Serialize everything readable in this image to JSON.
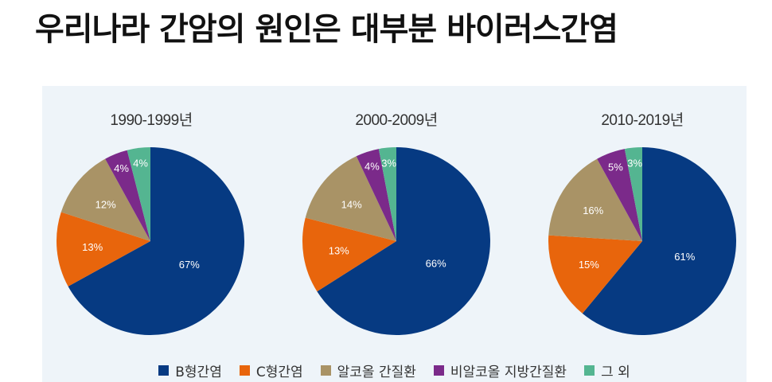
{
  "headline": "우리나라 간암의 원인은 대부분 바이러스간염",
  "colors": {
    "B형간염": "#063a82",
    "C형간염": "#e8650c",
    "알코올 간질환": "#a99366",
    "비알코올 지방간질환": "#7b2a8a",
    "그 외": "#54b591",
    "panel_bg": "#eef4f9"
  },
  "chart_data": [
    {
      "type": "pie",
      "title": "1990-1999년",
      "categories": [
        "B형간염",
        "C형간염",
        "알코올 간질환",
        "비알코올 지방간질환",
        "그 외"
      ],
      "values": [
        67,
        13,
        12,
        4,
        4
      ],
      "labels": [
        "67%",
        "13%",
        "12%",
        "4%",
        "4%"
      ],
      "legend_position": "bottom"
    },
    {
      "type": "pie",
      "title": "2000-2009년",
      "categories": [
        "B형간염",
        "C형간염",
        "알코올 간질환",
        "비알코올 지방간질환",
        "그 외"
      ],
      "values": [
        66,
        13,
        14,
        4,
        3
      ],
      "labels": [
        "66%",
        "13%",
        "14%",
        "4%",
        "3%"
      ],
      "legend_position": "bottom"
    },
    {
      "type": "pie",
      "title": "2010-2019년",
      "categories": [
        "B형간염",
        "C형간염",
        "알코올 간질환",
        "비알코올 지방간질환",
        "그 외"
      ],
      "values": [
        61,
        15,
        16,
        5,
        3
      ],
      "labels": [
        "61%",
        "15%",
        "16%",
        "5%",
        "3%"
      ],
      "legend_position": "bottom"
    }
  ],
  "legend": [
    {
      "label": "B형간염",
      "color": "#063a82"
    },
    {
      "label": "C형간염",
      "color": "#e8650c"
    },
    {
      "label": "알코올 간질환",
      "color": "#a99366"
    },
    {
      "label": "비알코올 지방간질환",
      "color": "#7b2a8a"
    },
    {
      "label": "그 외",
      "color": "#54b591"
    }
  ]
}
